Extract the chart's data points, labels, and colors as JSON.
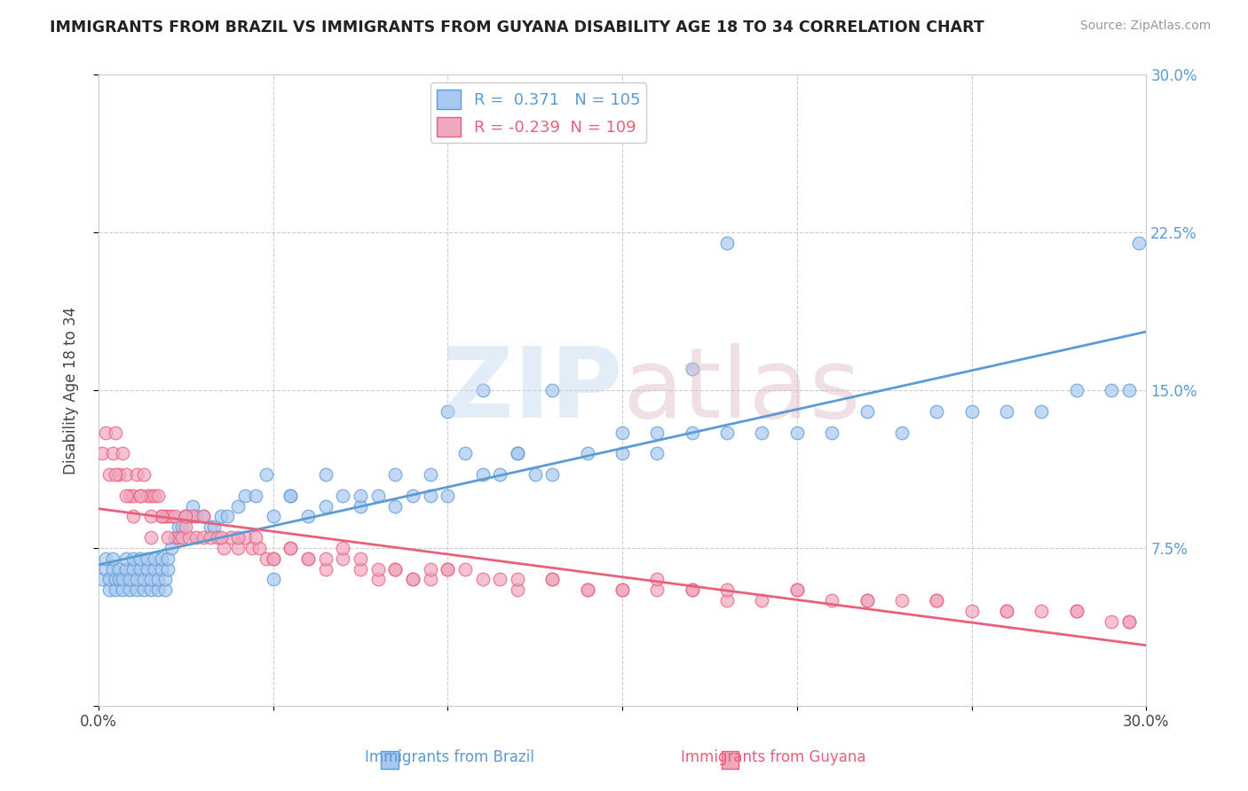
{
  "title": "IMMIGRANTS FROM BRAZIL VS IMMIGRANTS FROM GUYANA DISABILITY AGE 18 TO 34 CORRELATION CHART",
  "source": "Source: ZipAtlas.com",
  "ylabel": "Disability Age 18 to 34",
  "xlim": [
    0.0,
    0.3
  ],
  "ylim": [
    0.0,
    0.3
  ],
  "brazil_R": 0.371,
  "brazil_N": 105,
  "guyana_R": -0.239,
  "guyana_N": 109,
  "brazil_color": "#a8c8f0",
  "guyana_color": "#f0a8c0",
  "brazil_line_color": "#5b9bd5",
  "guyana_line_color": "#e8607a",
  "brazil_scatter_x": [
    0.001,
    0.002,
    0.002,
    0.003,
    0.003,
    0.004,
    0.004,
    0.005,
    0.005,
    0.006,
    0.006,
    0.007,
    0.007,
    0.008,
    0.008,
    0.009,
    0.009,
    0.01,
    0.01,
    0.011,
    0.011,
    0.012,
    0.012,
    0.013,
    0.013,
    0.014,
    0.014,
    0.015,
    0.015,
    0.016,
    0.016,
    0.017,
    0.017,
    0.018,
    0.018,
    0.019,
    0.019,
    0.02,
    0.02,
    0.021,
    0.022,
    0.023,
    0.024,
    0.025,
    0.026,
    0.027,
    0.028,
    0.03,
    0.032,
    0.033,
    0.035,
    0.037,
    0.04,
    0.042,
    0.045,
    0.048,
    0.05,
    0.055,
    0.06,
    0.065,
    0.07,
    0.075,
    0.08,
    0.085,
    0.09,
    0.095,
    0.1,
    0.105,
    0.11,
    0.115,
    0.12,
    0.125,
    0.13,
    0.14,
    0.15,
    0.16,
    0.17,
    0.18,
    0.19,
    0.2,
    0.21,
    0.22,
    0.23,
    0.24,
    0.25,
    0.26,
    0.27,
    0.28,
    0.29,
    0.295,
    0.298,
    0.17,
    0.18,
    0.1,
    0.11,
    0.12,
    0.13,
    0.055,
    0.065,
    0.075,
    0.085,
    0.095,
    0.15,
    0.16,
    0.05
  ],
  "brazil_scatter_y": [
    0.06,
    0.065,
    0.07,
    0.055,
    0.06,
    0.065,
    0.07,
    0.055,
    0.06,
    0.06,
    0.065,
    0.055,
    0.06,
    0.065,
    0.07,
    0.055,
    0.06,
    0.065,
    0.07,
    0.055,
    0.06,
    0.065,
    0.07,
    0.055,
    0.06,
    0.065,
    0.07,
    0.055,
    0.06,
    0.065,
    0.07,
    0.055,
    0.06,
    0.065,
    0.07,
    0.055,
    0.06,
    0.065,
    0.07,
    0.075,
    0.08,
    0.085,
    0.085,
    0.09,
    0.09,
    0.095,
    0.09,
    0.09,
    0.085,
    0.085,
    0.09,
    0.09,
    0.095,
    0.1,
    0.1,
    0.11,
    0.09,
    0.1,
    0.09,
    0.095,
    0.1,
    0.095,
    0.1,
    0.095,
    0.1,
    0.1,
    0.1,
    0.12,
    0.11,
    0.11,
    0.12,
    0.11,
    0.11,
    0.12,
    0.12,
    0.12,
    0.13,
    0.13,
    0.13,
    0.13,
    0.13,
    0.14,
    0.13,
    0.14,
    0.14,
    0.14,
    0.14,
    0.15,
    0.15,
    0.15,
    0.22,
    0.16,
    0.22,
    0.14,
    0.15,
    0.12,
    0.15,
    0.1,
    0.11,
    0.1,
    0.11,
    0.11,
    0.13,
    0.13,
    0.06
  ],
  "guyana_scatter_x": [
    0.001,
    0.002,
    0.003,
    0.004,
    0.005,
    0.006,
    0.007,
    0.008,
    0.009,
    0.01,
    0.011,
    0.012,
    0.013,
    0.014,
    0.015,
    0.016,
    0.017,
    0.018,
    0.019,
    0.02,
    0.021,
    0.022,
    0.023,
    0.024,
    0.025,
    0.026,
    0.027,
    0.028,
    0.03,
    0.032,
    0.034,
    0.036,
    0.038,
    0.04,
    0.042,
    0.044,
    0.046,
    0.048,
    0.05,
    0.055,
    0.06,
    0.065,
    0.07,
    0.075,
    0.08,
    0.085,
    0.09,
    0.095,
    0.1,
    0.11,
    0.12,
    0.13,
    0.14,
    0.15,
    0.16,
    0.17,
    0.18,
    0.19,
    0.2,
    0.21,
    0.22,
    0.23,
    0.24,
    0.25,
    0.26,
    0.27,
    0.28,
    0.29,
    0.295,
    0.01,
    0.012,
    0.015,
    0.018,
    0.02,
    0.025,
    0.03,
    0.04,
    0.05,
    0.06,
    0.07,
    0.08,
    0.09,
    0.1,
    0.12,
    0.14,
    0.16,
    0.18,
    0.2,
    0.22,
    0.24,
    0.26,
    0.28,
    0.295,
    0.005,
    0.008,
    0.015,
    0.025,
    0.035,
    0.045,
    0.055,
    0.065,
    0.075,
    0.085,
    0.095,
    0.105,
    0.115,
    0.13,
    0.15,
    0.17
  ],
  "guyana_scatter_y": [
    0.12,
    0.13,
    0.11,
    0.12,
    0.13,
    0.11,
    0.12,
    0.11,
    0.1,
    0.1,
    0.11,
    0.1,
    0.11,
    0.1,
    0.1,
    0.1,
    0.1,
    0.09,
    0.09,
    0.09,
    0.09,
    0.09,
    0.08,
    0.08,
    0.09,
    0.08,
    0.09,
    0.08,
    0.08,
    0.08,
    0.08,
    0.075,
    0.08,
    0.075,
    0.08,
    0.075,
    0.075,
    0.07,
    0.07,
    0.075,
    0.07,
    0.065,
    0.07,
    0.065,
    0.06,
    0.065,
    0.06,
    0.06,
    0.065,
    0.06,
    0.055,
    0.06,
    0.055,
    0.055,
    0.055,
    0.055,
    0.05,
    0.05,
    0.055,
    0.05,
    0.05,
    0.05,
    0.05,
    0.045,
    0.045,
    0.045,
    0.045,
    0.04,
    0.04,
    0.09,
    0.1,
    0.08,
    0.09,
    0.08,
    0.085,
    0.09,
    0.08,
    0.07,
    0.07,
    0.075,
    0.065,
    0.06,
    0.065,
    0.06,
    0.055,
    0.06,
    0.055,
    0.055,
    0.05,
    0.05,
    0.045,
    0.045,
    0.04,
    0.11,
    0.1,
    0.09,
    0.09,
    0.08,
    0.08,
    0.075,
    0.07,
    0.07,
    0.065,
    0.065,
    0.065,
    0.06,
    0.06,
    0.055,
    0.055
  ]
}
